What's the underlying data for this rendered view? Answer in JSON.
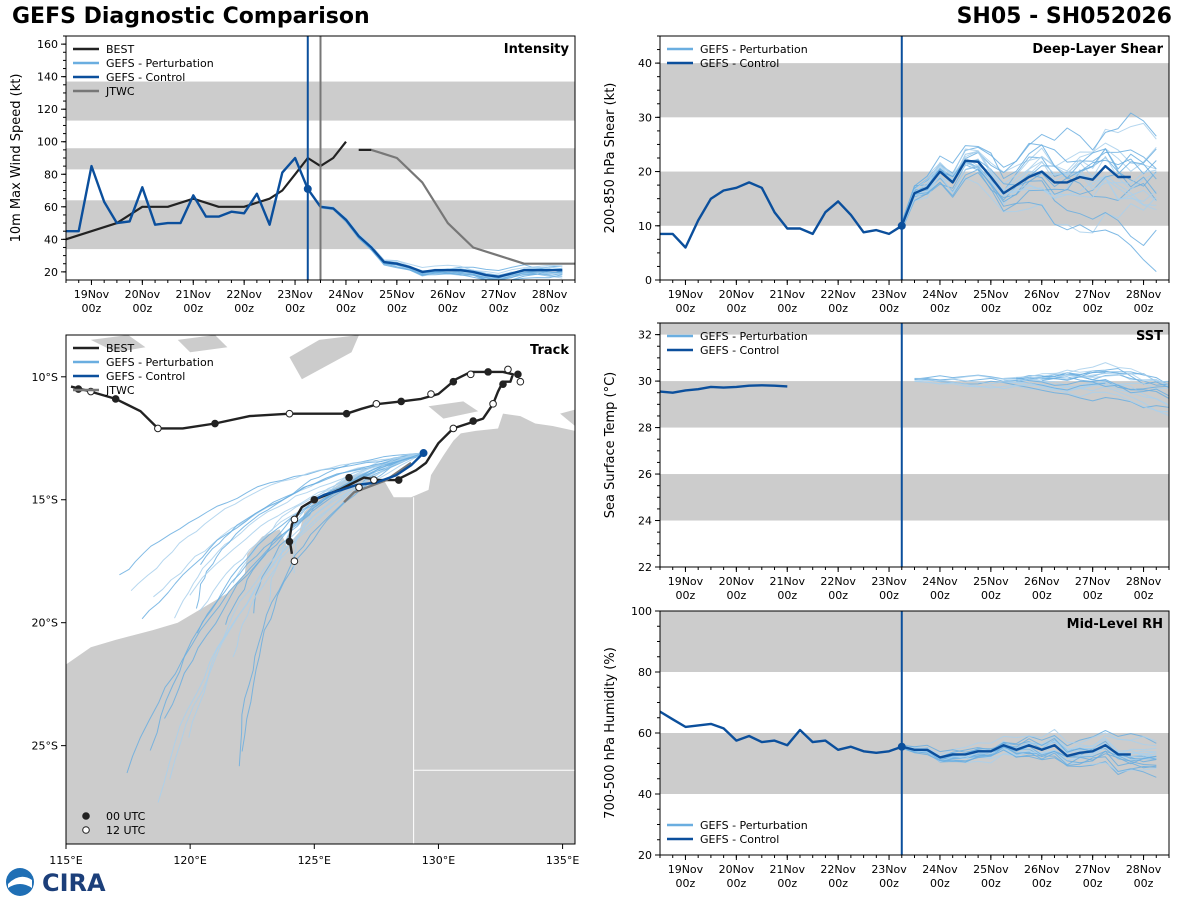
{
  "header": {
    "title": "GEFS Diagnostic Comparison",
    "storm_id": "SH05 - SH052026"
  },
  "colors": {
    "best": "#222222",
    "perturbation": "#6aaee0",
    "perturbation_light": "#a9d0ec",
    "control": "#0b4f9c",
    "jtwc": "#777777",
    "band": "#cccccc",
    "land": "#cccccc"
  },
  "time_axis": {
    "days": [
      "19Nov",
      "20Nov",
      "21Nov",
      "22Nov",
      "23Nov",
      "24Nov",
      "25Nov",
      "26Nov",
      "27Nov",
      "28Nov"
    ],
    "hour_label": "00z",
    "range_hours": [
      -12,
      228
    ],
    "init_hour": 102,
    "jtwc_init_hour": 108
  },
  "logo": {
    "text": "CIRA"
  },
  "chart_data": [
    {
      "id": "intensity",
      "type": "line",
      "title": "Intensity",
      "xlabel": "",
      "ylabel": "10m Max Wind Speed (kt)",
      "ylim": [
        15,
        165
      ],
      "yticks": [
        20,
        40,
        60,
        80,
        100,
        120,
        140,
        160
      ],
      "bands": [
        [
          34,
          64
        ],
        [
          83,
          96
        ],
        [
          113,
          137
        ]
      ],
      "legend": [
        "BEST",
        "GEFS - Perturbation",
        "GEFS - Control",
        "JTWC"
      ],
      "legend_position": "top-left",
      "best": {
        "x": [
          -12,
          12,
          24,
          36,
          48,
          60,
          72,
          84,
          90,
          96,
          102,
          108,
          114,
          120
        ],
        "y": [
          40,
          50,
          60,
          60,
          65,
          60,
          60,
          65,
          70,
          80,
          90,
          85,
          90,
          100
        ]
      },
      "best_extra": {
        "x": [
          126,
          132
        ],
        "y": [
          95,
          95
        ]
      },
      "control": {
        "x": [
          -12,
          -6,
          0,
          6,
          12,
          18,
          24,
          30,
          36,
          42,
          48,
          54,
          60,
          66,
          72,
          78,
          84,
          90,
          96,
          102,
          108,
          114,
          120,
          126,
          132,
          138,
          144,
          150,
          156,
          162,
          168,
          174,
          180,
          186,
          192,
          198,
          204,
          210,
          216,
          222
        ],
        "y": [
          45,
          45,
          85,
          63,
          50,
          51,
          72,
          49,
          50,
          50,
          67,
          54,
          54,
          57,
          56,
          68,
          49,
          81,
          90,
          71,
          60,
          59,
          52,
          42,
          35,
          26,
          25,
          23,
          20,
          21,
          21,
          21,
          20,
          18,
          17,
          19,
          21,
          21,
          21,
          21
        ]
      },
      "jtwc": {
        "x": [
          132,
          144,
          156,
          168,
          180,
          192,
          204,
          216,
          228
        ],
        "y": [
          95,
          90,
          75,
          50,
          35,
          30,
          25,
          25,
          25
        ]
      },
      "perturbation_members": 20
    },
    {
      "id": "shear",
      "type": "line",
      "title": "Deep-Layer Shear",
      "xlabel": "",
      "ylabel": "200-850 hPa Shear (kt)",
      "ylim": [
        0,
        45
      ],
      "yticks": [
        0,
        10,
        20,
        30,
        40
      ],
      "bands": [
        [
          10,
          20
        ],
        [
          30,
          40
        ]
      ],
      "legend": [
        "GEFS - Perturbation",
        "GEFS - Control"
      ],
      "legend_position": "top-left",
      "control": {
        "x": [
          -12,
          -6,
          0,
          6,
          12,
          18,
          24,
          30,
          36,
          42,
          48,
          54,
          60,
          66,
          72,
          78,
          84,
          90,
          96,
          102,
          108,
          114,
          120,
          126,
          132,
          138,
          144,
          150,
          156,
          162,
          168,
          174,
          180,
          186,
          192,
          198,
          204,
          210
        ],
        "y": [
          8.5,
          8.5,
          6,
          11,
          15,
          16.5,
          17,
          18,
          17,
          12.5,
          9.5,
          9.5,
          8.5,
          12.5,
          14.5,
          12,
          8.8,
          9.2,
          8.5,
          10,
          16,
          17,
          20,
          18,
          22,
          21.8,
          19,
          16,
          17.5,
          19,
          20,
          18,
          18,
          19,
          18.5,
          21,
          19,
          19
        ]
      },
      "perturbation_members": 20
    },
    {
      "id": "sst",
      "type": "line",
      "title": "SST",
      "xlabel": "",
      "ylabel": "Sea Surface Temp (°C)",
      "ylim": [
        22,
        32.5
      ],
      "yticks": [
        22,
        24,
        26,
        28,
        30,
        32
      ],
      "bands": [
        [
          24,
          26
        ],
        [
          28,
          30
        ],
        [
          32,
          33
        ]
      ],
      "legend": [
        "GEFS - Perturbation",
        "GEFS - Control"
      ],
      "legend_position": "top-left",
      "control": {
        "x": [
          -12,
          -6,
          0,
          6,
          12,
          18,
          24,
          30,
          36,
          42,
          48
        ],
        "y": [
          29.55,
          29.5,
          29.6,
          29.65,
          29.75,
          29.72,
          29.75,
          29.8,
          29.82,
          29.8,
          29.77
        ]
      },
      "perturbation_members": 20
    },
    {
      "id": "rh",
      "type": "line",
      "title": "Mid-Level RH",
      "xlabel": "",
      "ylabel": "700-500 hPa Humidity (%)",
      "ylim": [
        20,
        100
      ],
      "yticks": [
        20,
        40,
        60,
        80,
        100
      ],
      "bands": [
        [
          40,
          60
        ],
        [
          80,
          100
        ]
      ],
      "legend": [
        "GEFS - Perturbation",
        "GEFS - Control"
      ],
      "legend_position": "bottom-left",
      "control": {
        "x": [
          -12,
          -6,
          0,
          6,
          12,
          18,
          24,
          30,
          36,
          42,
          48,
          54,
          60,
          66,
          72,
          78,
          84,
          90,
          96,
          102,
          108,
          114,
          120,
          126,
          132,
          138,
          144,
          150,
          156,
          162,
          168,
          174,
          180,
          186,
          192,
          198,
          204,
          210
        ],
        "y": [
          67,
          64.5,
          62,
          62.5,
          63,
          61.5,
          57.5,
          59,
          57,
          57.5,
          56,
          61,
          57,
          57.5,
          54.5,
          55.5,
          54,
          53.5,
          54,
          55.5,
          54.5,
          54.5,
          52,
          53,
          53,
          54,
          54,
          56,
          54.5,
          56,
          54.5,
          56,
          52.5,
          53.5,
          54,
          56,
          53,
          53
        ]
      },
      "perturbation_members": 20
    },
    {
      "id": "track",
      "type": "scatter",
      "title": "Track",
      "xlabel": "",
      "ylabel": "",
      "xlim": [
        115,
        135.5
      ],
      "ylim": [
        -29,
        -8.3
      ],
      "xticks": [
        115,
        120,
        125,
        130,
        135
      ],
      "xtick_labels": [
        "115°E",
        "120°E",
        "125°E",
        "130°E",
        "135°E"
      ],
      "yticks": [
        -10,
        -15,
        -20,
        -25
      ],
      "ytick_labels": [
        "10°S",
        "15°S",
        "20°S",
        "25°S"
      ],
      "legend": [
        "BEST",
        "GEFS - Perturbation",
        "GEFS - Control",
        "JTWC"
      ],
      "marker_legend": [
        "00 UTC",
        "12 UTC"
      ],
      "best_track": {
        "lon": [
          115.2,
          116.0,
          117.0,
          118.0,
          118.7,
          119.7,
          121.0,
          122.4,
          124.0,
          125.7,
          126.3,
          126.9,
          127.6,
          128.5,
          129.3,
          130.0,
          130.7,
          131.3,
          132.0,
          132.6,
          133.0,
          132.9,
          132.6,
          132.4,
          132.2,
          131.8,
          131.2,
          130.6,
          130.0,
          129.5,
          129.1,
          128.7,
          128.3,
          127.6,
          127.0,
          126.6,
          126.0,
          125.5,
          125.0,
          124.5,
          124.1,
          124.0,
          124.1
        ],
        "lat": [
          -10.4,
          -10.6,
          -10.9,
          -11.4,
          -12.1,
          -12.1,
          -11.9,
          -11.6,
          -11.5,
          -11.5,
          -11.5,
          -11.3,
          -11.1,
          -11.0,
          -10.9,
          -10.7,
          -10.1,
          -9.8,
          -9.8,
          -9.8,
          -9.9,
          -10.2,
          -10.2,
          -10.6,
          -11.1,
          -11.7,
          -11.9,
          -12.1,
          -12.7,
          -13.5,
          -13.8,
          -14.0,
          -14.2,
          -14.2,
          -14.1,
          -14.3,
          -14.6,
          -14.8,
          -15.0,
          -15.3,
          -16.0,
          -16.6,
          -17.2
        ]
      },
      "best_markers": [
        {
          "lon": 115.5,
          "lat": -10.5,
          "hour": "00"
        },
        {
          "lon": 116.0,
          "lat": -10.6,
          "hour": "12"
        },
        {
          "lon": 117.0,
          "lat": -10.9,
          "hour": "00"
        },
        {
          "lon": 118.7,
          "lat": -12.1,
          "hour": "12"
        },
        {
          "lon": 121.0,
          "lat": -11.9,
          "hour": "00"
        },
        {
          "lon": 124.0,
          "lat": -11.5,
          "hour": "12"
        },
        {
          "lon": 126.3,
          "lat": -11.5,
          "hour": "00"
        },
        {
          "lon": 127.5,
          "lat": -11.1,
          "hour": "12"
        },
        {
          "lon": 128.5,
          "lat": -11.0,
          "hour": "00"
        },
        {
          "lon": 129.7,
          "lat": -10.7,
          "hour": "12"
        },
        {
          "lon": 130.6,
          "lat": -10.2,
          "hour": "00"
        },
        {
          "lon": 131.3,
          "lat": -9.9,
          "hour": "12"
        },
        {
          "lon": 132.0,
          "lat": -9.8,
          "hour": "00"
        },
        {
          "lon": 132.8,
          "lat": -9.7,
          "hour": "12"
        },
        {
          "lon": 133.2,
          "lat": -9.9,
          "hour": "00"
        },
        {
          "lon": 133.3,
          "lat": -10.2,
          "hour": "12"
        },
        {
          "lon": 132.6,
          "lat": -10.3,
          "hour": "00"
        },
        {
          "lon": 132.2,
          "lat": -11.1,
          "hour": "12"
        },
        {
          "lon": 131.4,
          "lat": -11.8,
          "hour": "00"
        },
        {
          "lon": 130.6,
          "lat": -12.1,
          "hour": "12"
        },
        {
          "lon": 128.4,
          "lat": -14.2,
          "hour": "00"
        },
        {
          "lon": 127.4,
          "lat": -14.2,
          "hour": "12"
        },
        {
          "lon": 126.4,
          "lat": -14.1,
          "hour": "00"
        },
        {
          "lon": 126.8,
          "lat": -14.5,
          "hour": "12"
        },
        {
          "lon": 125.0,
          "lat": -15.0,
          "hour": "00"
        },
        {
          "lon": 124.2,
          "lat": -15.8,
          "hour": "12"
        },
        {
          "lon": 124.0,
          "lat": -16.7,
          "hour": "00"
        },
        {
          "lon": 124.2,
          "lat": -17.5,
          "hour": "12"
        }
      ],
      "jtwc_track": {
        "lon": [
          128.9,
          127.9,
          126.6,
          126.2
        ],
        "lat": [
          -13.5,
          -14.2,
          -14.7,
          -15.1
        ]
      },
      "control_track": {
        "lon": [
          129.4,
          128.9,
          128.3,
          127.5,
          126.7,
          126.1,
          125.4,
          125.0
        ],
        "lat": [
          -13.1,
          -13.6,
          -14.0,
          -14.3,
          -14.4,
          -14.6,
          -14.8,
          -15.0
        ]
      },
      "control_start": {
        "lon": 129.4,
        "lat": -13.1
      },
      "perturbation_members": 24
    }
  ]
}
